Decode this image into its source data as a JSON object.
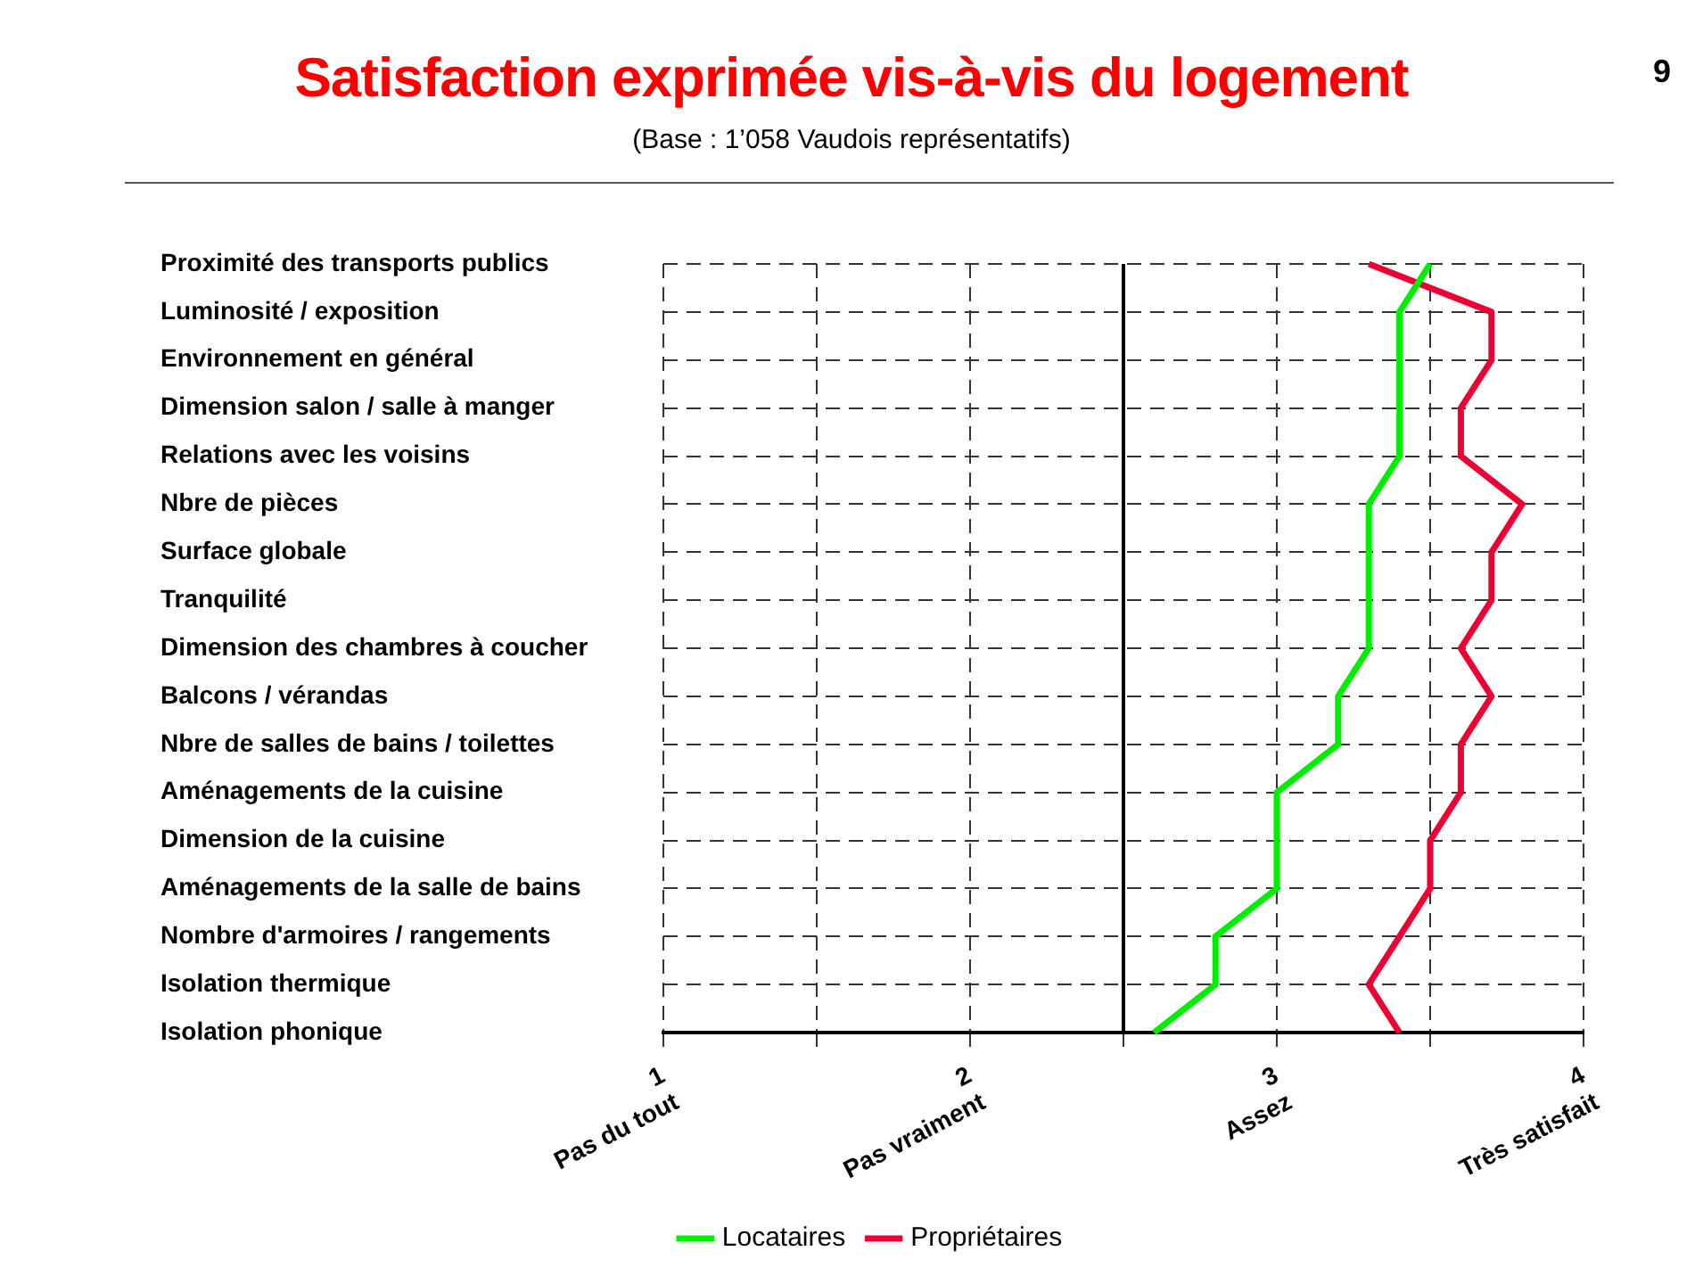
{
  "chart_data": {
    "type": "line",
    "title": "Satisfaction exprimée vis-à-vis du logement",
    "subtitle": "(Base : 1’058 Vaudois représentatifs)",
    "orientation": "horizontal",
    "categories": [
      "Proximité des transports publics",
      "Luminosité / exposition",
      "Environnement en général",
      "Dimension salon / salle à manger",
      "Relations avec les voisins",
      "Nbre de pièces",
      "Surface globale",
      "Tranquilité",
      "Dimension des chambres à coucher",
      "Balcons / vérandas",
      "Nbre de salles de bains / toilettes",
      "Aménagements de la cuisine",
      "Dimension de la cuisine",
      "Aménagements de la salle de bains",
      "Nombre d'armoires / rangements",
      "Isolation thermique",
      "Isolation phonique"
    ],
    "series": [
      {
        "name": "Locataires",
        "color": "#00ee00",
        "values": [
          3.5,
          3.4,
          3.4,
          3.4,
          3.4,
          3.3,
          3.3,
          3.3,
          3.3,
          3.2,
          3.2,
          3.0,
          3.0,
          3.0,
          2.8,
          2.8,
          2.6
        ]
      },
      {
        "name": "Propriétaires",
        "color": "#ee0033",
        "values": [
          3.3,
          3.7,
          3.7,
          3.6,
          3.6,
          3.8,
          3.7,
          3.7,
          3.6,
          3.7,
          3.6,
          3.6,
          3.5,
          3.5,
          3.4,
          3.3,
          3.4
        ]
      }
    ],
    "xlim": [
      1,
      4
    ],
    "xticks": [
      {
        "value": 1,
        "label": "1\nPas du tout"
      },
      {
        "value": 1.5,
        "label": null
      },
      {
        "value": 2,
        "label": "2\nPas vraiment"
      },
      {
        "value": 2.5,
        "label": null
      },
      {
        "value": 3,
        "label": "3\nAssez"
      },
      {
        "value": 3.5,
        "label": null
      },
      {
        "value": 4,
        "label": "4\nTrès satisfait"
      }
    ],
    "ref_lines": [
      {
        "axis": "x",
        "value": 2.5,
        "color": "#000000"
      }
    ],
    "annotations": [
      "9"
    ],
    "grid": true,
    "legend": "bottom",
    "marker": "none",
    "line_style": "solid"
  }
}
